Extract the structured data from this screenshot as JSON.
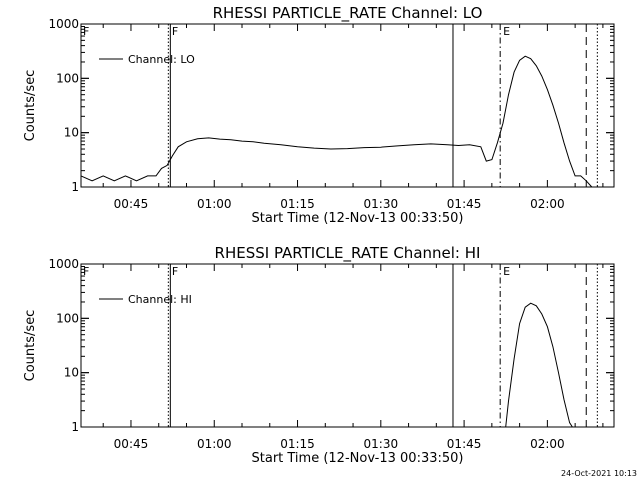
{
  "footer": {
    "timestamp": "24-Oct-2021 10:13"
  },
  "chart_data": [
    {
      "type": "line",
      "title": "RHESSI PARTICLE_RATE Channel: LO",
      "xlabel": "Start Time (12-Nov-13 00:33:50)",
      "ylabel": "Counts/sec",
      "yscale": "log",
      "ylim": [
        1,
        1000
      ],
      "xlim": [
        "00:36:00",
        "02:12:00"
      ],
      "x_ticks": [
        "00:45",
        "01:00",
        "01:15",
        "01:30",
        "01:45",
        "02:00"
      ],
      "y_ticks": [
        "1",
        "10",
        "100",
        "1000"
      ],
      "legend": {
        "label": "Channel: LO",
        "placement": "top-left"
      },
      "flags": [
        "F",
        "F",
        "E"
      ],
      "vertical_markers": [
        {
          "time": "00:52:00",
          "style": "dotted-solid"
        },
        {
          "time": "01:43:00",
          "style": "solid"
        },
        {
          "time": "01:51:30",
          "style": "dash-dot"
        },
        {
          "time": "02:07:00",
          "style": "dashed"
        },
        {
          "time": "02:09:00",
          "style": "dotted"
        }
      ],
      "series": [
        {
          "x": [
            "00:36:00",
            "00:38:00",
            "00:40:00",
            "00:42:00",
            "00:44:00",
            "00:46:00",
            "00:48:00",
            "00:49:30",
            "00:50:30",
            "00:51:30",
            "00:52:30",
            "00:53:30",
            "00:55:00",
            "00:57:00",
            "00:59:00",
            "01:01:00",
            "01:03:00",
            "01:05:00",
            "01:07:00",
            "01:09:00",
            "01:12:00",
            "01:15:00",
            "01:18:00",
            "01:21:00",
            "01:24:00",
            "01:27:00",
            "01:30:00",
            "01:33:00",
            "01:36:00",
            "01:39:00",
            "01:42:00",
            "01:44:00",
            "01:46:00",
            "01:48:00",
            "01:49:00",
            "01:50:00",
            "01:51:00",
            "01:52:00",
            "01:53:00",
            "01:54:00",
            "01:55:00",
            "01:56:00",
            "01:57:00",
            "01:58:00",
            "01:59:00",
            "02:00:00",
            "02:01:00",
            "02:02:00",
            "02:03:00",
            "02:04:00",
            "02:05:00",
            "02:06:00",
            "02:07:00",
            "02:08:00"
          ],
          "values": [
            1.6,
            1.3,
            1.6,
            1.3,
            1.6,
            1.3,
            1.6,
            1.6,
            2.2,
            2.5,
            3.8,
            5.5,
            6.8,
            7.7,
            8.0,
            7.6,
            7.4,
            7.0,
            6.8,
            6.4,
            6.0,
            5.5,
            5.2,
            5.0,
            5.1,
            5.3,
            5.4,
            5.7,
            6.0,
            6.2,
            6.0,
            5.8,
            6.0,
            5.5,
            3.0,
            3.2,
            6.5,
            15,
            50,
            130,
            215,
            255,
            230,
            170,
            110,
            62,
            32,
            15,
            6.5,
            3.0,
            1.6,
            1.6,
            1.3,
            1.0
          ]
        }
      ]
    },
    {
      "type": "line",
      "title": "RHESSI PARTICLE_RATE Channel: HI",
      "xlabel": "Start Time (12-Nov-13 00:33:50)",
      "ylabel": "Counts/sec",
      "yscale": "log",
      "ylim": [
        1,
        1000
      ],
      "xlim": [
        "00:36:00",
        "02:12:00"
      ],
      "x_ticks": [
        "00:45",
        "01:00",
        "01:15",
        "01:30",
        "01:45",
        "02:00"
      ],
      "y_ticks": [
        "1",
        "10",
        "100",
        "1000"
      ],
      "legend": {
        "label": "Channel: HI",
        "placement": "top-left"
      },
      "flags": [
        "F",
        "F",
        "E"
      ],
      "vertical_markers": [
        {
          "time": "00:52:00",
          "style": "dotted-solid"
        },
        {
          "time": "01:43:00",
          "style": "solid"
        },
        {
          "time": "01:51:30",
          "style": "dash-dot"
        },
        {
          "time": "02:07:00",
          "style": "dashed"
        },
        {
          "time": "02:09:00",
          "style": "dotted"
        }
      ],
      "series": [
        {
          "x": [
            "01:52:30",
            "01:53:00",
            "01:54:00",
            "01:55:00",
            "01:56:00",
            "01:57:00",
            "01:58:00",
            "01:59:00",
            "02:00:00",
            "02:01:00",
            "02:02:00",
            "02:03:00",
            "02:04:00",
            "02:04:30"
          ],
          "values": [
            1.0,
            3,
            18,
            80,
            160,
            190,
            170,
            120,
            70,
            30,
            10,
            3.2,
            1.2,
            1.0
          ]
        }
      ]
    }
  ]
}
